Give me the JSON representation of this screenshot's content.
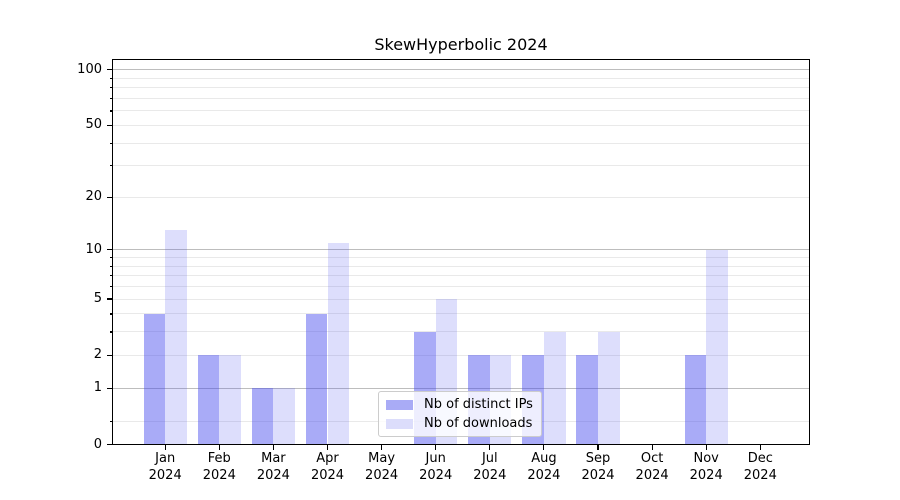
{
  "chart_data": {
    "type": "bar",
    "title": "SkewHyperbolic 2024",
    "year": "2024",
    "categories": [
      "Jan",
      "Feb",
      "Mar",
      "Apr",
      "May",
      "Jun",
      "Jul",
      "Aug",
      "Sep",
      "Oct",
      "Nov",
      "Dec"
    ],
    "series": [
      {
        "name": "Nb of distinct IPs",
        "values": [
          4,
          2,
          1,
          4,
          0,
          3,
          2,
          2,
          2,
          0,
          2,
          0
        ],
        "color": "rgba(67,72,238,0.46)",
        "legend_color": "#a9abf6"
      },
      {
        "name": "Nb of downloads",
        "values": [
          13,
          2,
          1,
          11,
          0,
          5,
          2,
          3,
          3,
          0,
          10,
          0
        ],
        "color": "rgba(67,72,238,0.18)",
        "legend_color": "#dcddfb"
      }
    ],
    "xlabel": "",
    "ylabel": "",
    "yscale": "log10(1+x)",
    "ylim": [
      0,
      115
    ],
    "yticks": [
      0,
      1,
      2,
      5,
      10,
      20,
      50,
      100
    ],
    "major_gridlines": [
      1,
      10,
      100
    ],
    "minor_gridlines": [
      0.33,
      2,
      3,
      4,
      5,
      6,
      7,
      8,
      9,
      20,
      30,
      40,
      50,
      60,
      70,
      80,
      90
    ],
    "grid": true,
    "legend_position": "lower center",
    "colors": {
      "background": "#ffffff",
      "axis": "#000000",
      "text": "#000000",
      "major_grid": "#bdbdbd",
      "minor_grid": "#e9e9e9"
    }
  }
}
